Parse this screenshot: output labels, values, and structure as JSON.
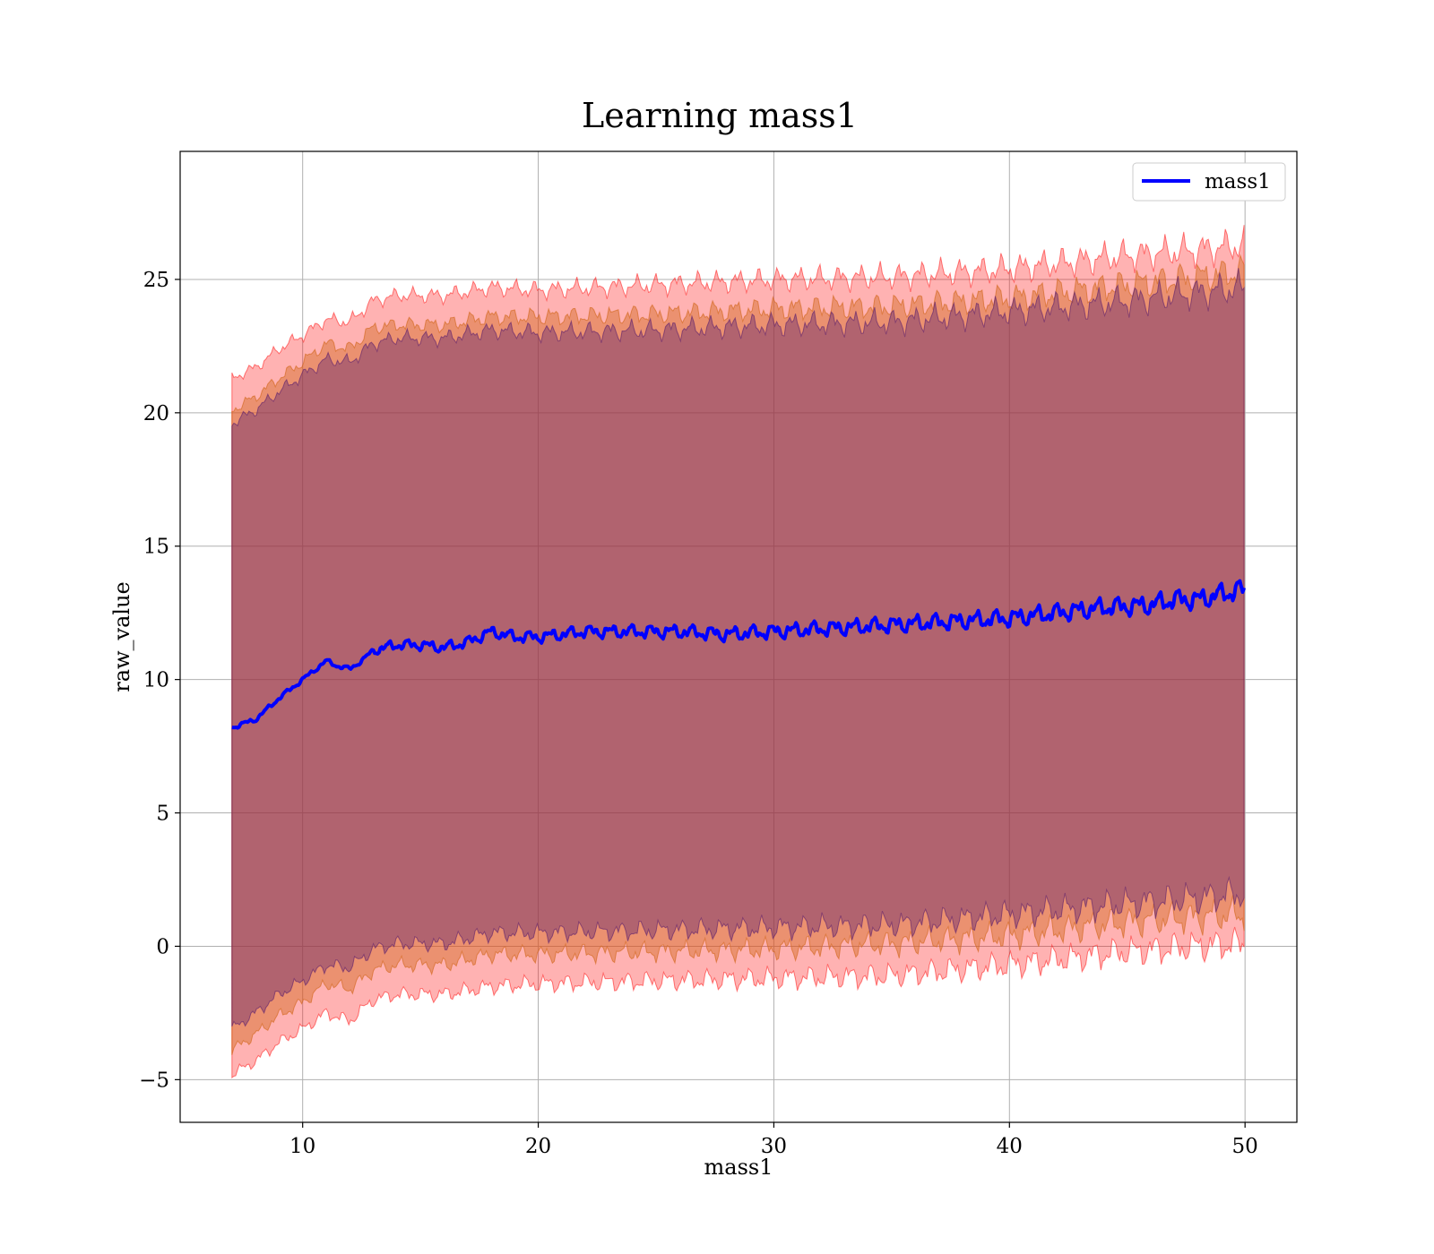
{
  "chart_data": {
    "type": "line",
    "title": "Learning mass1",
    "xlabel": "mass1",
    "ylabel": "raw_value",
    "xlim": [
      4.8,
      52.2
    ],
    "ylim": [
      -6.6,
      29.8
    ],
    "xticks": [
      10,
      20,
      30,
      40,
      50
    ],
    "xtick_labels": [
      "10",
      "20",
      "30",
      "40",
      "50"
    ],
    "yticks": [
      -5,
      0,
      5,
      10,
      15,
      20,
      25
    ],
    "ytick_labels": [
      "−5",
      "0",
      "5",
      "10",
      "15",
      "20",
      "25"
    ],
    "grid": true,
    "legend": {
      "position": "top-right",
      "entries": [
        "mass1"
      ]
    },
    "series": [
      {
        "name": "mass1",
        "x": [
          7.0,
          8,
          9,
          10,
          11,
          11.5,
          12,
          12.5,
          13,
          14,
          15,
          16,
          17,
          18,
          19,
          20,
          22,
          24,
          26,
          28,
          30,
          32,
          34,
          36,
          38,
          40,
          42,
          44,
          46,
          47,
          48,
          49,
          50
        ],
        "y": [
          8.2,
          8.5,
          9.3,
          10.0,
          10.7,
          10.5,
          10.4,
          10.7,
          11.1,
          11.3,
          11.3,
          11.2,
          11.4,
          11.8,
          11.6,
          11.6,
          11.8,
          11.8,
          11.8,
          11.7,
          11.8,
          11.9,
          12.0,
          12.1,
          12.2,
          12.3,
          12.5,
          12.7,
          12.8,
          13.0,
          13.0,
          13.2,
          13.4
        ],
        "color": "#0000ff"
      }
    ],
    "bands": [
      {
        "color": "#ff0000",
        "opacity": 0.3,
        "x": [
          7.0,
          8,
          9,
          10,
          11,
          12,
          13,
          14,
          16,
          18,
          20,
          25,
          30,
          35,
          40,
          45,
          48,
          50
        ],
        "lower": [
          -4.8,
          -4.3,
          -3.6,
          -3.1,
          -2.5,
          -2.8,
          -2.0,
          -1.8,
          -1.8,
          -1.5,
          -1.4,
          -1.3,
          -1.2,
          -1.1,
          -0.7,
          -0.2,
          0.0,
          0.1
        ],
        "upper": [
          21.3,
          21.7,
          22.4,
          22.9,
          23.5,
          23.4,
          24.2,
          24.4,
          24.4,
          24.7,
          24.6,
          24.8,
          25.0,
          25.1,
          25.4,
          25.9,
          26.1,
          26.3
        ]
      },
      {
        "color": "#d2691e",
        "opacity": 0.45,
        "x": [
          7.0,
          8,
          9,
          10,
          11,
          12,
          13,
          14,
          16,
          18,
          20,
          25,
          30,
          35,
          40,
          45,
          48,
          50
        ],
        "lower": [
          -3.9,
          -3.3,
          -2.6,
          -2.1,
          -1.4,
          -1.6,
          -0.9,
          -0.7,
          -0.7,
          -0.3,
          -0.3,
          -0.2,
          -0.1,
          0.1,
          0.4,
          0.9,
          1.1,
          1.2
        ],
        "upper": [
          20.1,
          20.6,
          21.3,
          21.9,
          22.6,
          22.4,
          23.2,
          23.3,
          23.3,
          23.6,
          23.6,
          23.7,
          23.9,
          24.0,
          24.3,
          24.8,
          25.1,
          25.3
        ]
      },
      {
        "color": "#5a1e6e",
        "opacity": 0.4,
        "x": [
          7.0,
          8,
          9,
          10,
          11,
          12,
          13,
          14,
          16,
          18,
          20,
          25,
          30,
          35,
          40,
          45,
          48,
          50
        ],
        "lower": [
          -3.1,
          -2.5,
          -1.8,
          -1.3,
          -0.7,
          -0.8,
          -0.1,
          0.1,
          0.1,
          0.5,
          0.5,
          0.6,
          0.7,
          0.8,
          1.2,
          1.6,
          1.8,
          2.0
        ],
        "upper": [
          19.6,
          20.1,
          20.8,
          21.4,
          22.0,
          21.9,
          22.6,
          22.8,
          22.8,
          23.1,
          23.0,
          23.1,
          23.3,
          23.4,
          23.8,
          24.2,
          24.5,
          24.7
        ]
      }
    ]
  }
}
